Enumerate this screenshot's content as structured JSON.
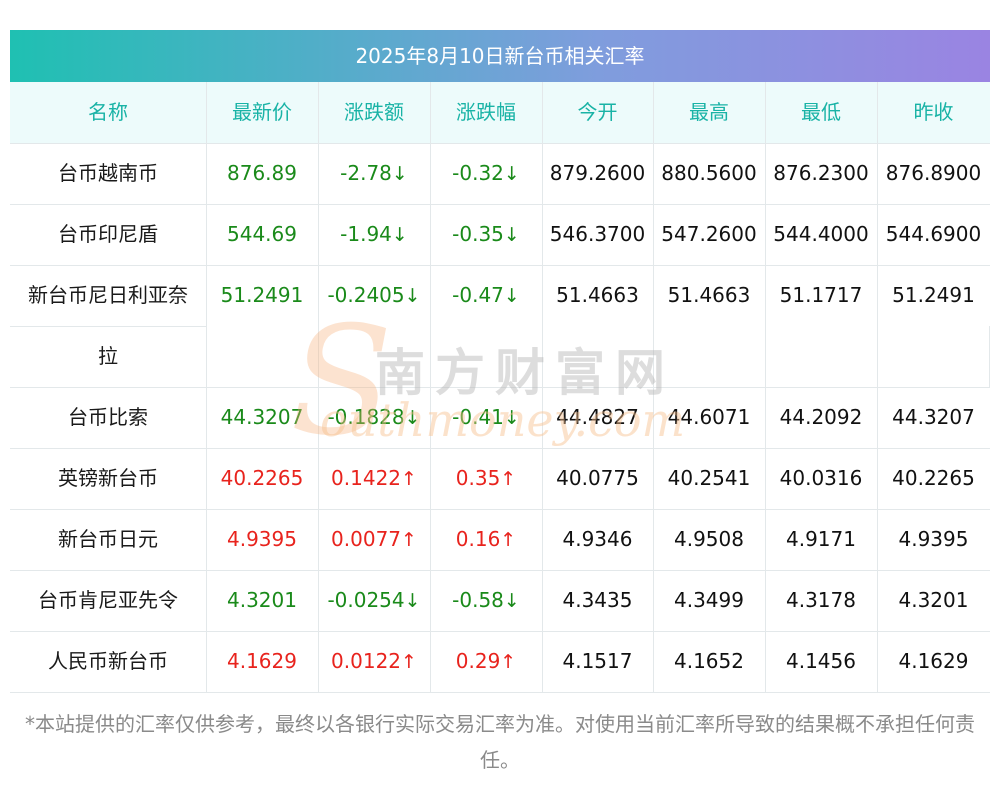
{
  "title": "2025年8月10日新台币相关汇率",
  "headers": [
    "名称",
    "最新价",
    "涨跌额",
    "涨跌幅",
    "今开",
    "最高",
    "最低",
    "昨收"
  ],
  "colors": {
    "header_text": "#19b3a6",
    "up": "#e8231d",
    "down": "#1a8a1a",
    "title_gradient": [
      "#1fc0b2",
      "#9a84e2"
    ]
  },
  "watermark": {
    "logo_letter": "S",
    "cn": "南方财富网",
    "en": "outhmoney.com"
  },
  "chart_data": {
    "type": "table",
    "title": "2025年8月10日新台币相关汇率",
    "columns": [
      "名称",
      "最新价",
      "涨跌额",
      "涨跌幅",
      "今开",
      "最高",
      "最低",
      "昨收"
    ],
    "rows": [
      {
        "name": "台币越南币",
        "dir": "down",
        "latest": "876.89",
        "change": "-2.78",
        "pct": "-0.32",
        "arrow": "↓",
        "open": "879.2600",
        "high": "880.5600",
        "low": "876.2300",
        "prev": "876.8900"
      },
      {
        "name": "台币印尼盾",
        "dir": "down",
        "latest": "544.69",
        "change": "-1.94",
        "pct": "-0.35",
        "arrow": "↓",
        "open": "546.3700",
        "high": "547.2600",
        "low": "544.4000",
        "prev": "544.6900"
      },
      {
        "name": "新台币尼日利亚奈",
        "name2": "拉",
        "dir": "down",
        "latest": "51.2491",
        "change": "-0.2405",
        "pct": "-0.47",
        "arrow": "↓",
        "open": "51.4663",
        "high": "51.4663",
        "low": "51.1717",
        "prev": "51.2491"
      },
      {
        "name": "台币比索",
        "dir": "down",
        "latest": "44.3207",
        "change": "-0.1828",
        "pct": "-0.41",
        "arrow": "↓",
        "open": "44.4827",
        "high": "44.6071",
        "low": "44.2092",
        "prev": "44.3207"
      },
      {
        "name": "英镑新台币",
        "dir": "up",
        "latest": "40.2265",
        "change": "0.1422",
        "pct": "0.35",
        "arrow": "↑",
        "open": "40.0775",
        "high": "40.2541",
        "low": "40.0316",
        "prev": "40.2265"
      },
      {
        "name": "新台币日元",
        "dir": "up",
        "latest": "4.9395",
        "change": "0.0077",
        "pct": "0.16",
        "arrow": "↑",
        "open": "4.9346",
        "high": "4.9508",
        "low": "4.9171",
        "prev": "4.9395"
      },
      {
        "name": "台币肯尼亚先令",
        "dir": "down",
        "latest": "4.3201",
        "change": "-0.0254",
        "pct": "-0.58",
        "arrow": "↓",
        "open": "4.3435",
        "high": "4.3499",
        "low": "4.3178",
        "prev": "4.3201"
      },
      {
        "name": "人民币新台币",
        "dir": "up",
        "latest": "4.1629",
        "change": "0.0122",
        "pct": "0.29",
        "arrow": "↑",
        "open": "4.1517",
        "high": "4.1652",
        "low": "4.1456",
        "prev": "4.1629"
      }
    ]
  },
  "disclaimer": "*本站提供的汇率仅供参考，最终以各银行实际交易汇率为准。对使用当前汇率所导致的结果概不承担任何责任。"
}
